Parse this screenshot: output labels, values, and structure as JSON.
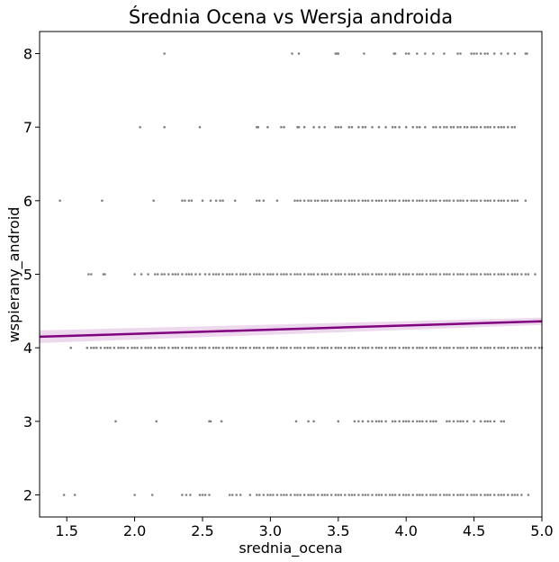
{
  "chart_data": {
    "type": "scatter",
    "title": "Średnia Ocena vs Wersja androida",
    "xlabel": "srednia_ocena",
    "ylabel": "wspierany_android",
    "xlim": [
      1.3,
      5.0
    ],
    "ylim": [
      1.7,
      8.3
    ],
    "xticks": [
      "1.5",
      "2.0",
      "2.5",
      "3.0",
      "3.5",
      "4.0",
      "4.5",
      "5.0"
    ],
    "yticks": [
      "2",
      "3",
      "4",
      "5",
      "6",
      "7",
      "8"
    ],
    "grid": false,
    "point_color": "#808080",
    "regression_color": "#800080",
    "regression_band_color": "#e6c8e6",
    "regression_line": {
      "x": [
        1.3,
        5.0
      ],
      "y": [
        4.15,
        4.36
      ]
    },
    "series": [
      {
        "y": 8,
        "x": [
          2.22,
          3.16,
          3.21,
          3.48,
          3.49,
          3.5,
          3.69,
          3.91,
          3.92,
          4.0,
          4.02,
          4.08,
          4.14,
          4.2,
          4.28,
          4.38,
          4.4,
          4.48,
          4.5,
          4.52,
          4.55,
          4.58,
          4.6,
          4.65,
          4.7,
          4.75,
          4.8,
          4.88,
          4.89
        ]
      },
      {
        "y": 7,
        "x": [
          2.04,
          2.22,
          2.48,
          2.9,
          2.91,
          2.98,
          3.08,
          3.1,
          3.2,
          3.21,
          3.25,
          3.32,
          3.36,
          3.4,
          3.48,
          3.5,
          3.52,
          3.58,
          3.6,
          3.65,
          3.68,
          3.7,
          3.75,
          3.8,
          3.85,
          3.9,
          3.92,
          3.95,
          4.0,
          4.05,
          4.08,
          4.1,
          4.14,
          4.2,
          4.22,
          4.25,
          4.28,
          4.3,
          4.33,
          4.35,
          4.38,
          4.4,
          4.43,
          4.45,
          4.48,
          4.5,
          4.52,
          4.55,
          4.58,
          4.6,
          4.62,
          4.65,
          4.68,
          4.7,
          4.72,
          4.75,
          4.78,
          4.8
        ]
      },
      {
        "y": 6,
        "x": [
          1.45,
          1.76,
          2.14,
          2.35,
          2.37,
          2.4,
          2.42,
          2.5,
          2.56,
          2.6,
          2.63,
          2.65,
          2.74,
          2.9,
          2.92,
          2.95,
          3.05,
          3.18,
          3.2,
          3.22,
          3.25,
          3.28,
          3.3,
          3.33,
          3.35,
          3.38,
          3.4,
          3.42,
          3.45,
          3.48,
          3.5,
          3.52,
          3.55,
          3.58,
          3.6,
          3.62,
          3.65,
          3.68,
          3.7,
          3.72,
          3.75,
          3.78,
          3.8,
          3.82,
          3.85,
          3.88,
          3.9,
          3.92,
          3.95,
          3.98,
          4.0,
          4.02,
          4.05,
          4.08,
          4.1,
          4.12,
          4.15,
          4.18,
          4.2,
          4.22,
          4.25,
          4.28,
          4.3,
          4.32,
          4.35,
          4.38,
          4.4,
          4.42,
          4.45,
          4.48,
          4.5,
          4.52,
          4.55,
          4.58,
          4.6,
          4.62,
          4.65,
          4.68,
          4.7,
          4.72,
          4.75,
          4.78,
          4.8,
          4.82,
          4.88
        ]
      },
      {
        "y": 5,
        "x": [
          1.66,
          1.68,
          1.77,
          1.78,
          2.0,
          2.05,
          2.1,
          2.15,
          2.17,
          2.2,
          2.22,
          2.25,
          2.28,
          2.3,
          2.32,
          2.35,
          2.38,
          2.4,
          2.42,
          2.45,
          2.48,
          2.52,
          2.55,
          2.58,
          2.6,
          2.62,
          2.65,
          2.68,
          2.7,
          2.72,
          2.75,
          2.78,
          2.8,
          2.82,
          2.85,
          2.88,
          2.9,
          2.92,
          2.95,
          2.98,
          3.0,
          3.02,
          3.05,
          3.08,
          3.1,
          3.12,
          3.15,
          3.18,
          3.2,
          3.22,
          3.25,
          3.28,
          3.3,
          3.32,
          3.35,
          3.38,
          3.4,
          3.42,
          3.45,
          3.48,
          3.5,
          3.52,
          3.55,
          3.58,
          3.6,
          3.62,
          3.65,
          3.68,
          3.7,
          3.72,
          3.75,
          3.78,
          3.8,
          3.82,
          3.85,
          3.88,
          3.9,
          3.92,
          3.95,
          3.98,
          4.0,
          4.02,
          4.05,
          4.08,
          4.1,
          4.12,
          4.15,
          4.18,
          4.2,
          4.22,
          4.25,
          4.28,
          4.3,
          4.32,
          4.35,
          4.38,
          4.4,
          4.42,
          4.45,
          4.48,
          4.5,
          4.52,
          4.55,
          4.58,
          4.6,
          4.62,
          4.65,
          4.68,
          4.7,
          4.72,
          4.75,
          4.78,
          4.8,
          4.82,
          4.85,
          4.88,
          4.9,
          4.95
        ]
      },
      {
        "y": 4,
        "x": [
          1.53,
          1.65,
          1.68,
          1.7,
          1.72,
          1.75,
          1.78,
          1.8,
          1.82,
          1.85,
          1.88,
          1.9,
          1.92,
          1.95,
          1.98,
          2.0,
          2.02,
          2.05,
          2.08,
          2.1,
          2.12,
          2.15,
          2.18,
          2.2,
          2.22,
          2.25,
          2.28,
          2.3,
          2.32,
          2.35,
          2.38,
          2.4,
          2.42,
          2.45,
          2.48,
          2.5,
          2.52,
          2.55,
          2.58,
          2.6,
          2.62,
          2.65,
          2.68,
          2.7,
          2.72,
          2.75,
          2.78,
          2.8,
          2.82,
          2.85,
          2.88,
          2.9,
          2.92,
          2.95,
          2.98,
          3.0,
          3.02,
          3.05,
          3.08,
          3.1,
          3.12,
          3.15,
          3.18,
          3.2,
          3.22,
          3.25,
          3.28,
          3.3,
          3.32,
          3.35,
          3.38,
          3.4,
          3.42,
          3.45,
          3.48,
          3.5,
          3.52,
          3.55,
          3.58,
          3.6,
          3.62,
          3.65,
          3.68,
          3.7,
          3.72,
          3.75,
          3.78,
          3.8,
          3.82,
          3.85,
          3.88,
          3.9,
          3.92,
          3.95,
          3.98,
          4.0,
          4.02,
          4.05,
          4.08,
          4.1,
          4.12,
          4.15,
          4.18,
          4.2,
          4.22,
          4.25,
          4.28,
          4.3,
          4.32,
          4.35,
          4.38,
          4.4,
          4.42,
          4.45,
          4.48,
          4.5,
          4.52,
          4.55,
          4.58,
          4.6,
          4.62,
          4.65,
          4.68,
          4.7,
          4.72,
          4.75,
          4.78,
          4.8,
          4.82,
          4.85,
          4.88,
          4.9,
          4.92,
          4.95,
          4.98,
          5.0
        ]
      },
      {
        "y": 3,
        "x": [
          1.86,
          2.16,
          2.55,
          2.56,
          2.64,
          3.19,
          3.28,
          3.32,
          3.5,
          3.62,
          3.65,
          3.68,
          3.72,
          3.75,
          3.78,
          3.8,
          3.82,
          3.85,
          3.9,
          3.92,
          3.95,
          3.98,
          4.0,
          4.02,
          4.05,
          4.08,
          4.1,
          4.12,
          4.15,
          4.18,
          4.2,
          4.22,
          4.3,
          4.32,
          4.35,
          4.38,
          4.4,
          4.42,
          4.45,
          4.5,
          4.55,
          4.58,
          4.6,
          4.62,
          4.65,
          4.7,
          4.72
        ]
      },
      {
        "y": 2,
        "x": [
          1.48,
          1.56,
          2.0,
          2.13,
          2.35,
          2.38,
          2.41,
          2.48,
          2.5,
          2.52,
          2.55,
          2.7,
          2.72,
          2.75,
          2.78,
          2.85,
          2.9,
          2.92,
          2.95,
          2.98,
          3.0,
          3.02,
          3.05,
          3.08,
          3.1,
          3.12,
          3.15,
          3.18,
          3.2,
          3.22,
          3.25,
          3.28,
          3.3,
          3.32,
          3.35,
          3.38,
          3.4,
          3.42,
          3.45,
          3.48,
          3.5,
          3.52,
          3.55,
          3.58,
          3.6,
          3.62,
          3.65,
          3.68,
          3.7,
          3.72,
          3.75,
          3.78,
          3.8,
          3.82,
          3.85,
          3.88,
          3.9,
          3.92,
          3.95,
          3.98,
          4.0,
          4.02,
          4.05,
          4.08,
          4.1,
          4.12,
          4.15,
          4.18,
          4.2,
          4.22,
          4.25,
          4.28,
          4.3,
          4.32,
          4.35,
          4.38,
          4.4,
          4.42,
          4.45,
          4.48,
          4.5,
          4.52,
          4.55,
          4.58,
          4.6,
          4.62,
          4.65,
          4.68,
          4.7,
          4.72,
          4.75,
          4.78,
          4.8,
          4.82,
          4.85,
          4.9
        ]
      }
    ]
  }
}
